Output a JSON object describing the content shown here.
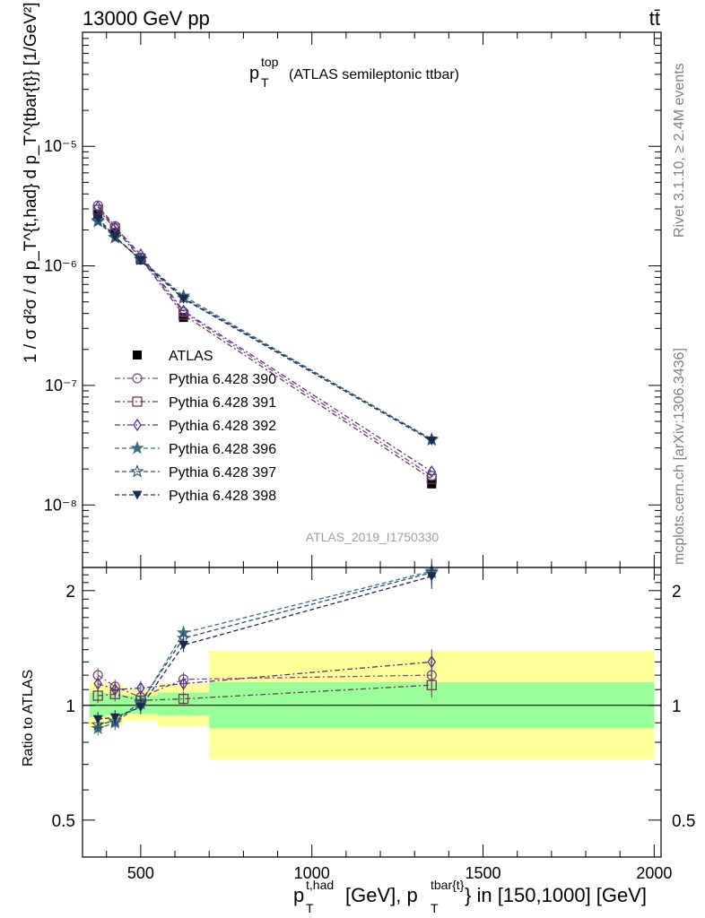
{
  "header": {
    "left": "13000 GeV pp",
    "right": "tt̄",
    "side_top": "Rivet 3.1.10, ≥ 2.4M events",
    "side_bottom": "mcplots.cern.ch [arXiv:1306.3436]",
    "analysis_id": "ATLAS_2019_I1750330"
  },
  "plot_title": {
    "p": "p",
    "sup": "top",
    "sub": "T",
    "rest": "(ATLAS semileptonic ttbar)"
  },
  "ylabel_main": "1 / σ d²σ / d p_T^{t,had} d p_T^{tbar{t}} [1/GeV²]",
  "ylabel_ratio": "Ratio to ATLAS",
  "xlabel": {
    "p1": "p",
    "sup1": "t,had",
    "sub1": "T",
    "mid": "[GeV], p",
    "sup2": "tbar{t}",
    "sub2": "T",
    "rest": "} in [150,1000] [GeV]"
  },
  "colors": {
    "ATLAS": "#000000",
    "s390": "#7a4c86",
    "s391": "#6a3b50",
    "s392": "#55328a",
    "s396": "#3d7080",
    "s397": "#2e4f6e",
    "s398": "#1a2a52",
    "band_outer": "#ffff99",
    "band_inner": "#99ff99"
  },
  "chart_data": [
    {
      "type": "line",
      "panel": "main",
      "yscale": "log",
      "ylim": [
        3e-09,
        9e-05
      ],
      "xlim": [
        330,
        2020
      ],
      "y_ticks": [
        "10⁻⁸",
        "10⁻⁷",
        "10⁻⁶",
        "10⁻⁵"
      ],
      "x": [
        375,
        425,
        500,
        625,
        1350
      ],
      "series": [
        {
          "name": "ATLAS",
          "key": "ATLAS",
          "marker": "square-filled",
          "values": [
            2.7e-06,
            1.9e-06,
            1.12e-06,
            3.7e-07,
            1.5e-08
          ]
        },
        {
          "name": "Pythia 6.428 390",
          "key": "s390",
          "marker": "circle-open",
          "values": [
            3.2e-06,
            2.15e-06,
            1.17e-06,
            4.1e-07,
            1.75e-08
          ]
        },
        {
          "name": "Pythia 6.428 391",
          "key": "s391",
          "marker": "square-open",
          "values": [
            2.95e-06,
            2.05e-06,
            1.15e-06,
            3.9e-07,
            1.65e-08
          ]
        },
        {
          "name": "Pythia 6.428 392",
          "key": "s392",
          "marker": "diamond-open",
          "values": [
            3.1e-06,
            2.1e-06,
            1.24e-06,
            4.2e-07,
            1.9e-08
          ]
        },
        {
          "name": "Pythia 6.428 396",
          "key": "s396",
          "marker": "star-filled",
          "values": [
            2.35e-06,
            1.72e-06,
            1.13e-06,
            5.6e-07,
            3.5e-08
          ]
        },
        {
          "name": "Pythia 6.428 397",
          "key": "s397",
          "marker": "star-open",
          "values": [
            2.4e-06,
            1.74e-06,
            1.14e-06,
            5.4e-07,
            3.55e-08
          ]
        },
        {
          "name": "Pythia 6.428 398",
          "key": "s398",
          "marker": "triangle-down-filled",
          "values": [
            2.5e-06,
            1.76e-06,
            1.11e-06,
            5.3e-07,
            3.45e-08
          ]
        }
      ]
    },
    {
      "type": "line",
      "panel": "ratio",
      "yscale": "log",
      "ylabel": "Ratio to ATLAS",
      "ylim": [
        0.4,
        2.3
      ],
      "xlim": [
        330,
        2020
      ],
      "y_ticks": [
        "0.5",
        "1",
        "2"
      ],
      "x_ticks": [
        "500",
        "1000",
        "1500",
        "2000"
      ],
      "x": [
        375,
        425,
        500,
        625,
        1350
      ],
      "bands": [
        {
          "x0": 350,
          "x1": 400,
          "inner": [
            0.93,
            1.08
          ],
          "outer": [
            0.87,
            1.15
          ]
        },
        {
          "x0": 400,
          "x1": 450,
          "inner": [
            0.94,
            1.07
          ],
          "outer": [
            0.89,
            1.13
          ]
        },
        {
          "x0": 450,
          "x1": 550,
          "inner": [
            0.95,
            1.06
          ],
          "outer": [
            0.91,
            1.1
          ]
        },
        {
          "x0": 550,
          "x1": 700,
          "inner": [
            0.94,
            1.08
          ],
          "outer": [
            0.88,
            1.14
          ]
        },
        {
          "x0": 700,
          "x1": 2000,
          "inner": [
            0.87,
            1.15
          ],
          "outer": [
            0.72,
            1.39
          ]
        }
      ],
      "series": [
        {
          "name": "Pythia 6.428 390",
          "key": "s390",
          "marker": "circle-open",
          "values": [
            1.2,
            1.12,
            1.05,
            1.17,
            1.2
          ]
        },
        {
          "name": "Pythia 6.428 391",
          "key": "s391",
          "marker": "square-open",
          "values": [
            1.06,
            1.07,
            1.03,
            1.04,
            1.13
          ]
        },
        {
          "name": "Pythia 6.428 392",
          "key": "s392",
          "marker": "diamond-open",
          "values": [
            1.14,
            1.1,
            1.11,
            1.14,
            1.3
          ]
        },
        {
          "name": "Pythia 6.428 396",
          "key": "s396",
          "marker": "star-filled",
          "values": [
            0.87,
            0.9,
            1.01,
            1.55,
            2.25
          ]
        },
        {
          "name": "Pythia 6.428 397",
          "key": "s397",
          "marker": "star-open",
          "values": [
            0.89,
            0.91,
            1.02,
            1.5,
            2.23
          ]
        },
        {
          "name": "Pythia 6.428 398",
          "key": "s398",
          "marker": "triangle-down-filled",
          "values": [
            0.92,
            0.93,
            0.99,
            1.44,
            2.18
          ]
        }
      ]
    }
  ]
}
